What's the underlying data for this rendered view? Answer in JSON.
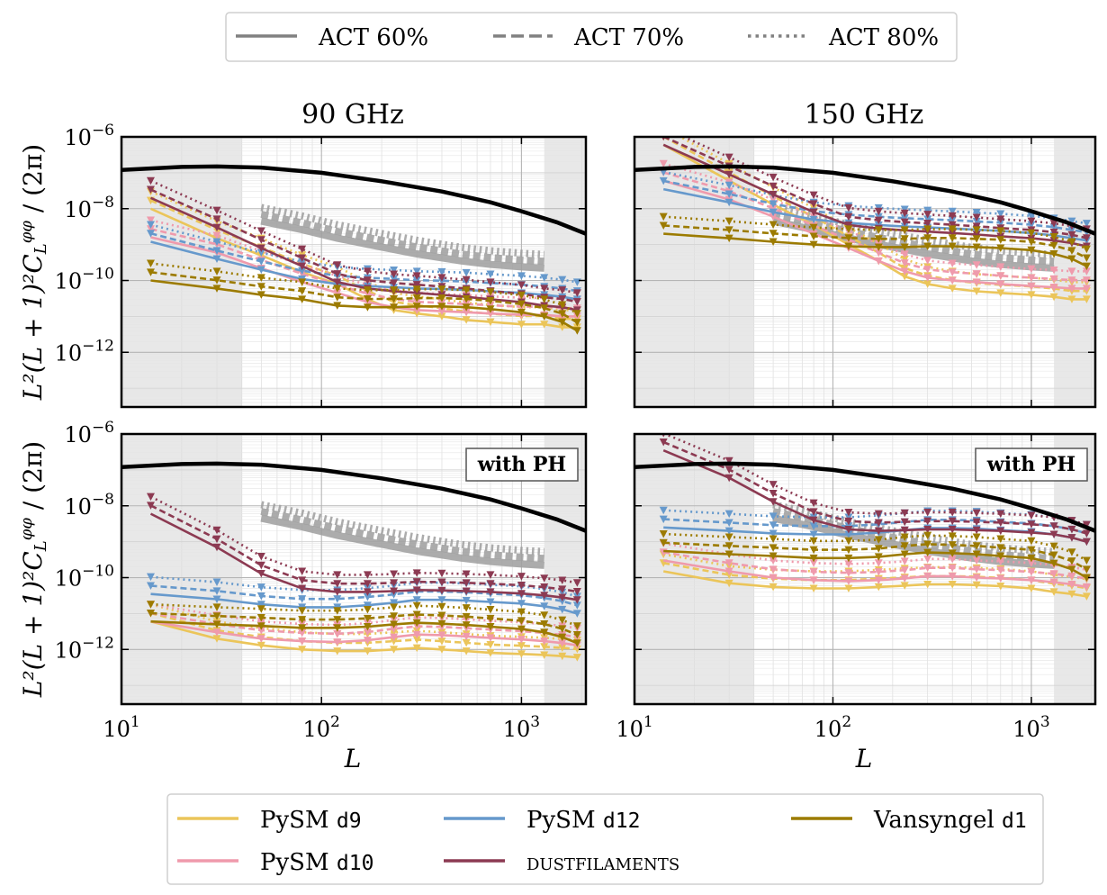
{
  "top_legend": {
    "items": [
      {
        "label": "ACT 60%",
        "style": "solid"
      },
      {
        "label": "ACT 70%",
        "style": "dashed"
      },
      {
        "label": "ACT 80%",
        "style": "dotted"
      }
    ]
  },
  "bottom_legend": {
    "items": [
      {
        "prefix": "PySM ",
        "code": "d9",
        "color": "#ebc55a"
      },
      {
        "prefix": "PySM ",
        "code": "d10",
        "color": "#ef9aac"
      },
      {
        "prefix": "PySM ",
        "code": "d12",
        "color": "#6699cc"
      },
      {
        "prefix": "",
        "code": "",
        "smallcaps": "dustfilaments",
        "color": "#8c3a52"
      },
      {
        "prefix": "Vansyngel ",
        "code": "d1",
        "color": "#9c7b00"
      }
    ]
  },
  "colors": {
    "d9": "#ebc55a",
    "d10": "#ef9aac",
    "d12": "#6699cc",
    "dustfilaments": "#8c3a52",
    "vansyngel": "#9c7b00",
    "signal": "#000000",
    "act": "#9e9e9e",
    "mask": "#e8e8e8"
  },
  "axis_labels": {
    "xlabel": "L",
    "ylabel_main": "L²(L + 1)²C",
    "ylabel_sub": "L",
    "ylabel_sup": "φφ",
    "ylabel_tail": " / (2π)",
    "xtick_base": "10",
    "ytick_base": "10"
  },
  "chart_data": {
    "type": "line",
    "xscale": "log",
    "yscale": "log",
    "xlim": [
      10,
      2100
    ],
    "ylim": [
      3e-14,
      1e-06
    ],
    "xticks": [
      {
        "base": "10",
        "exp": "1",
        "value": 10
      },
      {
        "base": "10",
        "exp": "2",
        "value": 100
      },
      {
        "base": "10",
        "exp": "3",
        "value": 1000
      }
    ],
    "yticks": [
      {
        "base": "10",
        "exp": "−6",
        "value": 1e-06
      },
      {
        "base": "10",
        "exp": "−8",
        "value": 1e-08
      },
      {
        "base": "10",
        "exp": "−10",
        "value": 1e-10
      },
      {
        "base": "10",
        "exp": "−12",
        "value": 1e-12
      }
    ],
    "masked_L_ranges": [
      [
        10,
        40
      ],
      [
        1300,
        2100
      ]
    ],
    "L_bins": [
      14,
      30,
      50,
      80,
      120,
      170,
      230,
      300,
      400,
      530,
      700,
      1000,
      1300,
      1600,
      1900
    ],
    "panels": [
      {
        "name": "90-ghz-top",
        "title": "90 GHz",
        "annotation": "",
        "signal": {
          "L": [
            10,
            20,
            30,
            50,
            100,
            200,
            400,
            700,
            1000,
            1500,
            2100
          ],
          "y": [
            1.2e-07,
            1.45e-07,
            1.5e-07,
            1.4e-07,
            1e-07,
            5.8e-08,
            3e-08,
            1.5e-08,
            8.5e-09,
            4.2e-09,
            2e-09
          ]
        },
        "act": {
          "L": [
            50,
            80,
            120,
            200,
            300,
            500,
            700,
            1000,
            1300
          ],
          "y": [
            4.5e-09,
            2.6e-09,
            1.5e-09,
            8.5e-10,
            5.5e-10,
            3.5e-10,
            2.8e-10,
            2.4e-10,
            2.2e-10
          ]
        },
        "series": [
          {
            "component": "d9",
            "values": [
              1e-08,
              1.5e-09,
              5e-10,
              1.7e-10,
              8e-11,
              3e-11,
              1.5e-11,
              1.2e-11,
              1e-11,
              8e-12,
              7e-12,
              6e-12,
              6e-12,
              5e-12,
              5e-12
            ]
          },
          {
            "component": "d10",
            "values": [
              1.6e-09,
              6e-10,
              2.2e-10,
              9e-11,
              4.5e-11,
              2.5e-11,
              1.8e-11,
              1.5e-11,
              1.4e-11,
              1.3e-11,
              1.2e-11,
              1.1e-11,
              1.1e-11,
              1e-11,
              1e-11
            ]
          },
          {
            "component": "d12",
            "values": [
              1.2e-09,
              4e-10,
              2e-10,
              1.1e-10,
              8e-11,
              7e-11,
              6.5e-11,
              6e-11,
              5.8e-11,
              5.5e-11,
              5e-11,
              4.5e-11,
              4e-11,
              3.5e-11,
              3e-11
            ]
          },
          {
            "component": "dustfilaments",
            "values": [
              2e-08,
              3e-09,
              8e-10,
              2.5e-10,
              9e-11,
              6e-11,
              5e-11,
              4.5e-11,
              4e-11,
              3.5e-11,
              3e-11,
              2.5e-11,
              2e-11,
              1.8e-11,
              1.5e-11
            ]
          },
          {
            "component": "vansyngel",
            "values": [
              1e-10,
              6e-11,
              4e-11,
              3e-11,
              2e-11,
              1.8e-11,
              1.8e-11,
              1.9e-11,
              1.9e-11,
              1.8e-11,
              1.6e-11,
              1.3e-11,
              1e-11,
              7e-12,
              4e-12
            ]
          }
        ]
      },
      {
        "name": "150-ghz-top",
        "title": "150 GHz",
        "annotation": "",
        "signal": {
          "L": [
            10,
            20,
            30,
            50,
            100,
            200,
            400,
            700,
            1000,
            1500,
            2100
          ],
          "y": [
            1.2e-07,
            1.45e-07,
            1.5e-07,
            1.4e-07,
            1e-07,
            5.8e-08,
            3e-08,
            1.5e-08,
            8.5e-09,
            4.2e-09,
            2e-09
          ]
        },
        "act": {
          "L": [
            50,
            80,
            120,
            200,
            300,
            500,
            700,
            1000,
            1300
          ],
          "y": [
            4.5e-09,
            2.6e-09,
            1.5e-09,
            8.5e-10,
            5.5e-10,
            3.5e-10,
            2.8e-10,
            2.4e-10,
            2.2e-10
          ]
        },
        "series": [
          {
            "component": "d9",
            "values": [
              6e-07,
              6e-08,
              1.3e-08,
              3.5e-09,
              1e-09,
              3.5e-10,
              1.3e-10,
              8e-11,
              6e-11,
              5e-11,
              4.5e-11,
              4e-11,
              3.5e-11,
              3e-11,
              3e-11
            ]
          },
          {
            "component": "d10",
            "values": [
              6e-08,
              1.8e-08,
              6e-09,
              2e-09,
              8e-10,
              3.5e-10,
              1.8e-10,
              1.2e-10,
              1e-10,
              9e-11,
              8e-11,
              7e-11,
              6.5e-11,
              6e-11,
              6e-11
            ]
          },
          {
            "component": "d12",
            "values": [
              3.5e-08,
              1.5e-08,
              8e-09,
              5e-09,
              4e-09,
              3.5e-09,
              3.2e-09,
              3e-09,
              2.8e-09,
              2.6e-09,
              2.4e-09,
              2.1e-09,
              1.8e-09,
              1.5e-09,
              1.3e-09
            ]
          },
          {
            "component": "dustfilaments",
            "values": [
              6e-07,
              9e-08,
              2.5e-08,
              8e-09,
              3.5e-09,
              2.8e-09,
              2.5e-09,
              2.3e-09,
              2.1e-09,
              1.9e-09,
              1.7e-09,
              1.5e-09,
              1.3e-09,
              1.1e-09,
              9e-10
            ]
          },
          {
            "component": "vansyngel",
            "values": [
              2e-09,
              1.5e-09,
              1.2e-09,
              1e-09,
              9e-10,
              8.5e-10,
              8.5e-10,
              9e-10,
              9e-10,
              8.5e-10,
              8e-10,
              7e-10,
              5.5e-10,
              4e-10,
              2.5e-10
            ]
          }
        ]
      },
      {
        "name": "90-ghz-bottom",
        "title": "",
        "annotation": "with PH",
        "signal": {
          "L": [
            10,
            20,
            30,
            50,
            100,
            200,
            400,
            700,
            1000,
            1500,
            2100
          ],
          "y": [
            1.2e-07,
            1.45e-07,
            1.5e-07,
            1.4e-07,
            1e-07,
            5.8e-08,
            3e-08,
            1.5e-08,
            8.5e-09,
            4.2e-09,
            2e-09
          ]
        },
        "act": {
          "L": [
            50,
            80,
            120,
            200,
            300,
            500,
            700,
            1000,
            1300
          ],
          "y": [
            4.5e-09,
            2.6e-09,
            1.5e-09,
            8.5e-10,
            5.5e-10,
            3.5e-10,
            2.8e-10,
            2.4e-10,
            2.2e-10
          ]
        },
        "series": [
          {
            "component": "d9",
            "values": [
              6e-12,
              2e-12,
              1.3e-12,
              1e-12,
              9e-13,
              9e-13,
              1e-12,
              1.1e-12,
              1e-12,
              9e-13,
              8e-13,
              7.5e-13,
              7e-13,
              6.5e-13,
              6e-13
            ]
          },
          {
            "component": "d10",
            "values": [
              6e-12,
              3e-12,
              2e-12,
              1.7e-12,
              1.6e-12,
              1.8e-12,
              2.2e-12,
              2.6e-12,
              2.5e-12,
              2.3e-12,
              2.1e-12,
              1.9e-12,
              1.7e-12,
              1.5e-12,
              1.3e-12
            ]
          },
          {
            "component": "d12",
            "values": [
              3.5e-11,
              2.5e-11,
              1.8e-11,
              1.5e-11,
              1.5e-11,
              1.7e-11,
              2e-11,
              2.4e-11,
              2.4e-11,
              2.3e-11,
              2.1e-11,
              1.9e-11,
              1.6e-11,
              1.3e-11,
              1e-11
            ]
          },
          {
            "component": "dustfilaments",
            "values": [
              6e-09,
              7e-10,
              1.3e-10,
              5e-11,
              4e-11,
              4e-11,
              4.2e-11,
              4.5e-11,
              4.4e-11,
              4.2e-11,
              4e-11,
              3.6e-11,
              3.2e-11,
              2.8e-11,
              2.4e-11
            ]
          },
          {
            "component": "vansyngel",
            "values": [
              6e-12,
              5e-12,
              4.5e-12,
              4e-12,
              4e-12,
              4.3e-12,
              5e-12,
              5.5e-12,
              5.2e-12,
              4.8e-12,
              4.3e-12,
              3.7e-12,
              3e-12,
              2.2e-12,
              1.5e-12
            ]
          }
        ]
      },
      {
        "name": "150-ghz-bottom",
        "title": "",
        "annotation": "with PH",
        "signal": {
          "L": [
            10,
            20,
            30,
            50,
            100,
            200,
            400,
            700,
            1000,
            1500,
            2100
          ],
          "y": [
            1.2e-07,
            1.45e-07,
            1.5e-07,
            1.4e-07,
            1e-07,
            5.8e-08,
            3e-08,
            1.5e-08,
            8.5e-09,
            4.2e-09,
            2e-09
          ]
        },
        "act": {
          "L": [
            50,
            80,
            120,
            200,
            300,
            500,
            700,
            1000,
            1300
          ],
          "y": [
            4.5e-09,
            2.6e-09,
            1.5e-09,
            8.5e-10,
            5.5e-10,
            3.5e-10,
            2.8e-10,
            2.4e-10,
            2.2e-10
          ]
        },
        "series": [
          {
            "component": "d9",
            "values": [
              1.5e-10,
              7e-11,
              5.5e-11,
              5e-11,
              5e-11,
              5.5e-11,
              6e-11,
              6.5e-11,
              6.5e-11,
              6.2e-11,
              5.8e-11,
              5e-11,
              4e-11,
              3.5e-11,
              3e-11
            ]
          },
          {
            "component": "d10",
            "values": [
              3e-10,
              1.5e-10,
              1e-10,
              8.5e-11,
              8e-11,
              8.5e-11,
              9.5e-11,
              1.1e-10,
              1.1e-10,
              1e-10,
              9.5e-11,
              8.5e-11,
              7.5e-11,
              6.5e-11,
              5.5e-11
            ]
          },
          {
            "component": "d12",
            "values": [
              2.5e-09,
              2e-09,
              1.7e-09,
              1.6e-09,
              1.6e-09,
              1.8e-09,
              2.1e-09,
              2.4e-09,
              2.4e-09,
              2.3e-09,
              2.1e-09,
              1.9e-09,
              1.6e-09,
              1.3e-09,
              1e-09
            ]
          },
          {
            "component": "dustfilaments",
            "values": [
              3.5e-07,
              6e-08,
              1.3e-08,
              4e-09,
              2.2e-09,
              2e-09,
              2.1e-09,
              2.2e-09,
              2.2e-09,
              2.1e-09,
              2e-09,
              1.8e-09,
              1.6e-09,
              1.3e-09,
              1e-09
            ]
          },
          {
            "component": "vansyngel",
            "values": [
              5.5e-10,
              4.5e-10,
              4e-10,
              3.5e-10,
              3.5e-10,
              3.8e-10,
              4.5e-10,
              5e-10,
              4.8e-10,
              4.5e-10,
              4e-10,
              3.5e-10,
              2.5e-10,
              1.7e-10,
              1e-10
            ]
          }
        ]
      }
    ]
  }
}
